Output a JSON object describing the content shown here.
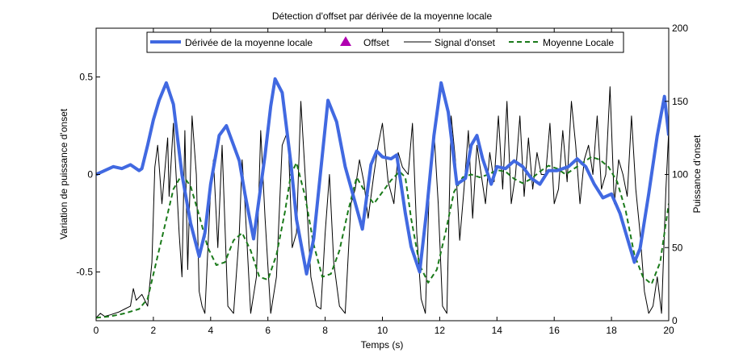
{
  "chart_data": {
    "type": "line",
    "title": "Détection d'offset par dérivée de la moyenne locale",
    "xlabel": "Temps (s)",
    "ylabel_left": "Variation de puissance d'onset",
    "ylabel_right": "Puissance d'onset",
    "xlim": [
      0,
      20
    ],
    "ylim_left": [
      -0.75,
      0.75
    ],
    "ylim_right": [
      0,
      200
    ],
    "x_ticks": [
      "0",
      "2",
      "4",
      "6",
      "8",
      "10",
      "12",
      "14",
      "16",
      "18",
      "20"
    ],
    "y_left_ticks": [
      "-0.5",
      "0",
      "0.5"
    ],
    "y_right_ticks": [
      "0",
      "50",
      "100",
      "150",
      "200"
    ],
    "grid": false,
    "legend_position": "top",
    "series": [
      {
        "name": "Dérivée de la moyenne locale",
        "axis": "left",
        "style": "solid",
        "color": "#4169e1",
        "x": [
          0,
          0.3,
          0.6,
          0.9,
          1.2,
          1.5,
          1.6,
          1.8,
          2.0,
          2.2,
          2.45,
          2.7,
          3.0,
          3.3,
          3.6,
          3.8,
          4.0,
          4.3,
          4.55,
          4.8,
          5.0,
          5.2,
          5.5,
          5.9,
          6.1,
          6.25,
          6.5,
          6.8,
          7.0,
          7.35,
          7.6,
          7.9,
          8.1,
          8.4,
          8.7,
          9.0,
          9.3,
          9.6,
          9.8,
          10.0,
          10.3,
          10.5,
          10.8,
          11.0,
          11.3,
          11.55,
          11.8,
          12.05,
          12.3,
          12.6,
          12.9,
          13.1,
          13.3,
          13.5,
          13.8,
          14.0,
          14.3,
          14.6,
          14.9,
          15.2,
          15.5,
          15.8,
          16.1,
          16.5,
          16.8,
          17.1,
          17.4,
          17.7,
          18.0,
          18.3,
          18.5,
          18.8,
          19.0,
          19.3,
          19.6,
          19.85,
          20.0
        ],
        "values": [
          0.0,
          0.02,
          0.04,
          0.03,
          0.05,
          0.02,
          0.03,
          0.15,
          0.28,
          0.38,
          0.47,
          0.36,
          0.0,
          -0.25,
          -0.42,
          -0.3,
          -0.05,
          0.2,
          0.25,
          0.15,
          0.07,
          -0.1,
          -0.33,
          0.1,
          0.35,
          0.49,
          0.42,
          0.06,
          -0.23,
          -0.51,
          -0.33,
          0.1,
          0.38,
          0.27,
          0.04,
          -0.12,
          -0.28,
          0.05,
          0.12,
          0.09,
          0.08,
          0.1,
          -0.2,
          -0.37,
          -0.5,
          -0.18,
          0.2,
          0.47,
          0.32,
          -0.05,
          -0.02,
          0.15,
          0.2,
          0.08,
          -0.05,
          0.04,
          0.03,
          0.07,
          0.04,
          -0.02,
          -0.05,
          0.02,
          0.02,
          0.04,
          0.08,
          0.04,
          -0.05,
          -0.12,
          -0.1,
          -0.2,
          -0.3,
          -0.45,
          -0.38,
          -0.1,
          0.2,
          0.4,
          0.2
        ]
      },
      {
        "name": "Offset",
        "axis": "left",
        "style": "marker",
        "marker": "triangle",
        "color": "#b000b0",
        "x": [],
        "values": []
      },
      {
        "name": "Signal d'onset",
        "axis": "right",
        "style": "solid-thin",
        "color": "#000000",
        "x": [
          0,
          0.15,
          0.3,
          0.5,
          0.8,
          1.0,
          1.2,
          1.3,
          1.4,
          1.6,
          1.8,
          1.95,
          2.05,
          2.15,
          2.3,
          2.5,
          2.55,
          2.7,
          2.9,
          3.0,
          3.1,
          3.2,
          3.35,
          3.5,
          3.6,
          3.7,
          3.8,
          4.0,
          4.1,
          4.25,
          4.4,
          4.6,
          4.8,
          5.0,
          5.1,
          5.2,
          5.4,
          5.6,
          5.75,
          5.9,
          6.1,
          6.3,
          6.5,
          6.7,
          6.85,
          7.0,
          7.15,
          7.3,
          7.5,
          7.7,
          7.85,
          8.0,
          8.15,
          8.3,
          8.5,
          8.7,
          8.9,
          9.05,
          9.2,
          9.35,
          9.5,
          9.7,
          9.85,
          10.0,
          10.2,
          10.4,
          10.55,
          10.7,
          10.9,
          11.05,
          11.2,
          11.35,
          11.5,
          11.65,
          11.8,
          11.95,
          12.1,
          12.25,
          12.4,
          12.55,
          12.7,
          12.85,
          13.0,
          13.15,
          13.3,
          13.45,
          13.6,
          13.75,
          13.9,
          14.05,
          14.2,
          14.35,
          14.5,
          14.65,
          14.8,
          14.95,
          15.1,
          15.25,
          15.4,
          15.55,
          15.7,
          15.85,
          16.0,
          16.15,
          16.3,
          16.45,
          16.6,
          16.75,
          16.9,
          17.05,
          17.2,
          17.35,
          17.5,
          17.65,
          17.8,
          17.95,
          18.1,
          18.25,
          18.4,
          18.55,
          18.7,
          18.85,
          19.0,
          19.15,
          19.3,
          19.45,
          19.6,
          19.75,
          19.9,
          20.0
        ],
        "values": [
          2,
          5,
          3,
          4,
          6,
          8,
          10,
          22,
          14,
          18,
          10,
          40,
          105,
          120,
          80,
          125,
          85,
          135,
          60,
          30,
          130,
          35,
          140,
          100,
          20,
          10,
          5,
          90,
          110,
          50,
          120,
          10,
          5,
          60,
          110,
          80,
          5,
          30,
          130,
          70,
          5,
          30,
          120,
          130,
          50,
          60,
          150,
          100,
          30,
          10,
          8,
          60,
          100,
          40,
          10,
          5,
          80,
          90,
          110,
          95,
          70,
          100,
          120,
          135,
          95,
          80,
          115,
          105,
          100,
          135,
          60,
          15,
          5,
          100,
          130,
          80,
          10,
          5,
          140,
          110,
          55,
          90,
          130,
          70,
          120,
          100,
          80,
          115,
          95,
          140,
          90,
          150,
          80,
          100,
          140,
          85,
          125,
          90,
          115,
          100,
          100,
          135,
          80,
          90,
          130,
          95,
          150,
          120,
          80,
          110,
          120,
          100,
          140,
          90,
          100,
          160,
          80,
          110,
          100,
          85,
          140,
          90,
          60,
          20,
          5,
          10,
          30,
          5,
          90,
          130
        ],
        "values_note_hidden": false
      },
      {
        "name": "Moyenne Locale",
        "axis": "right",
        "style": "dashed",
        "color": "#1a7a1a",
        "x": [
          0,
          0.5,
          1.0,
          1.5,
          1.8,
          2.1,
          2.4,
          2.7,
          3.0,
          3.3,
          3.6,
          3.9,
          4.2,
          4.5,
          4.8,
          5.1,
          5.4,
          5.7,
          6.0,
          6.3,
          6.6,
          6.8,
          7.0,
          7.3,
          7.6,
          7.9,
          8.2,
          8.5,
          8.8,
          9.1,
          9.4,
          9.7,
          10.0,
          10.3,
          10.6,
          10.8,
          11.0,
          11.3,
          11.6,
          11.9,
          12.2,
          12.5,
          12.8,
          13.1,
          13.4,
          13.7,
          14.0,
          14.3,
          14.6,
          14.9,
          15.2,
          15.5,
          15.8,
          16.1,
          16.4,
          16.7,
          17.0,
          17.3,
          17.6,
          17.9,
          18.2,
          18.5,
          18.8,
          19.1,
          19.4,
          19.7,
          20.0
        ],
        "values": [
          2,
          3,
          5,
          8,
          15,
          40,
          65,
          90,
          100,
          92,
          72,
          50,
          38,
          40,
          55,
          60,
          48,
          30,
          28,
          45,
          75,
          100,
          108,
          85,
          52,
          30,
          32,
          48,
          75,
          98,
          88,
          80,
          88,
          96,
          102,
          98,
          70,
          38,
          26,
          35,
          60,
          88,
          98,
          100,
          98,
          100,
          103,
          102,
          97,
          94,
          97,
          102,
          106,
          104,
          100,
          104,
          108,
          112,
          110,
          105,
          95,
          75,
          45,
          30,
          25,
          40,
          80
        ]
      }
    ]
  }
}
